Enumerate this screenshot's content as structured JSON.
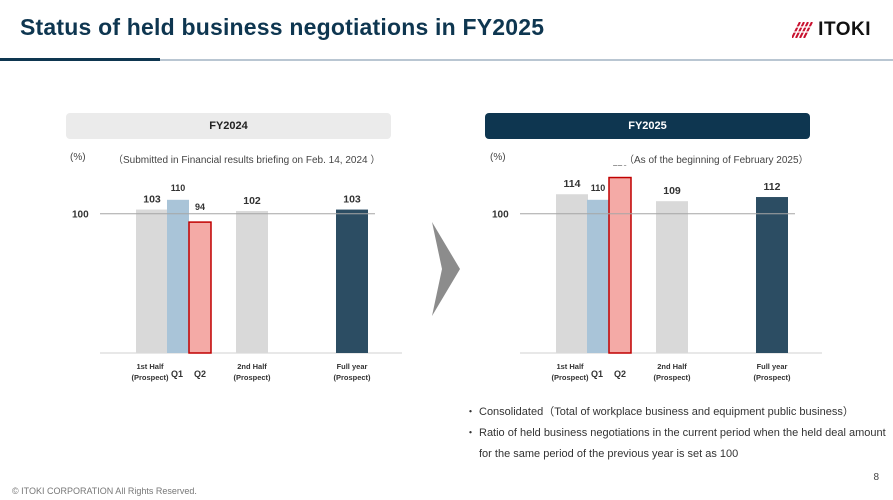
{
  "header": {
    "title": "Status of held business negotiations in FY2025",
    "logo_text": "ITOKI"
  },
  "colors": {
    "navy": "#0e3650",
    "bar_gray": "#d9d9d9",
    "bar_blue": "#a9c4d8",
    "bar_pink": "#f4aaa6",
    "bar_pink_border": "#c00000",
    "bar_dark": "#2c4d63"
  },
  "chart_data": [
    {
      "type": "bar",
      "panel_label": "FY2024",
      "unit": "(%)",
      "note": "（Submitted in Financial results briefing on Feb. 14, 2024 ）",
      "reference_line": {
        "value": 100,
        "label": "100"
      },
      "ylim": [
        0,
        135
      ],
      "categories": [
        {
          "lines": [
            "1st Half",
            "(Prospect)"
          ],
          "bold": true
        },
        {
          "lines": [
            "Q1"
          ],
          "bold": true
        },
        {
          "lines": [
            "Q2"
          ],
          "bold": true
        },
        {
          "lines": [
            "2nd Half",
            "(Prospect)"
          ],
          "bold": true
        },
        {
          "lines": [
            "Full year",
            "(Prospect)"
          ],
          "bold": true
        }
      ],
      "values": [
        103,
        110,
        94,
        102,
        103
      ],
      "value_labels": [
        "103",
        "110",
        "94",
        "102",
        "103"
      ],
      "bar_styles": [
        "gray",
        "blue",
        "pink",
        "gray",
        "dark"
      ]
    },
    {
      "type": "bar",
      "panel_label": "FY2025",
      "unit": "(%)",
      "note": "（As of the beginning of February 2025）",
      "reference_line": {
        "value": 100,
        "label": "100"
      },
      "ylim": [
        0,
        135
      ],
      "categories": [
        {
          "lines": [
            "1st Half",
            "(Prospect)"
          ],
          "bold": true
        },
        {
          "lines": [
            "Q1"
          ],
          "bold": true
        },
        {
          "lines": [
            "Q2"
          ],
          "bold": true
        },
        {
          "lines": [
            "2nd Half",
            "(Prospect)"
          ],
          "bold": true
        },
        {
          "lines": [
            "Full year",
            "(Prospect)"
          ],
          "bold": true
        }
      ],
      "values": [
        114,
        110,
        126,
        109,
        112
      ],
      "value_labels": [
        "114",
        "110",
        "126",
        "109",
        "112"
      ],
      "bar_styles": [
        "gray",
        "blue",
        "pink",
        "gray",
        "dark"
      ]
    }
  ],
  "bullets": [
    {
      "mark": "・",
      "text": "Consolidated（Total of workplace business and equipment public business）"
    },
    {
      "mark": "・",
      "text": "Ratio of held business negotiations in the current period when the held deal amount for the same period of the previous year is set as 100"
    }
  ],
  "footer": {
    "copyright": "© ITOKI CORPORATION All Rights Reserved.",
    "page_number": "8"
  }
}
